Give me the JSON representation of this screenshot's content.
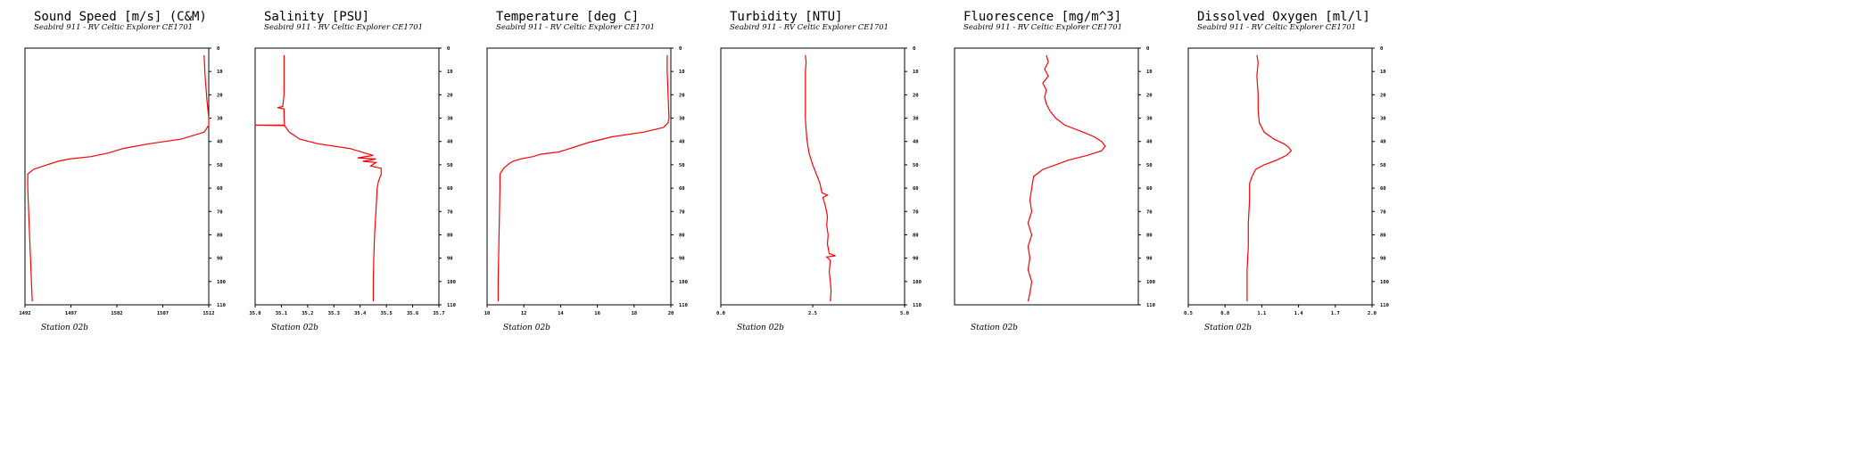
{
  "chart_data": [
    {
      "type": "line",
      "title": "Sound Speed [m/s] (C&M)",
      "subtitle": "Seabird 911 - RV Celtic Explorer CE1701",
      "station": "Station 02b",
      "color": "#ff0000",
      "xlim": [
        1492,
        1512
      ],
      "x_tick_labels": [
        "1492",
        "1497",
        "1502",
        "1507",
        "1512"
      ],
      "ylim": [
        0,
        110
      ],
      "y_inverted": true,
      "y_tick_labels": [
        "0",
        "10",
        "20",
        "30",
        "40",
        "50",
        "60",
        "70",
        "80",
        "90",
        "100",
        "110"
      ],
      "points": [
        [
          1511.5,
          3
        ],
        [
          1511.6,
          12
        ],
        [
          1511.8,
          22
        ],
        [
          1512.0,
          30
        ],
        [
          1512.0,
          33
        ],
        [
          1511.5,
          36
        ],
        [
          1509.0,
          39
        ],
        [
          1505.5,
          41
        ],
        [
          1502.7,
          43
        ],
        [
          1501.0,
          45
        ],
        [
          1499.2,
          46.5
        ],
        [
          1496.8,
          47.5
        ],
        [
          1495.6,
          48.5
        ],
        [
          1494.4,
          50
        ],
        [
          1492.9,
          52
        ],
        [
          1492.3,
          54
        ],
        [
          1492.3,
          60
        ],
        [
          1492.4,
          70
        ],
        [
          1492.5,
          80
        ],
        [
          1492.6,
          90
        ],
        [
          1492.7,
          100
        ],
        [
          1492.8,
          108.5
        ]
      ]
    },
    {
      "type": "line",
      "title": "Salinity [PSU]",
      "subtitle": "Seabird 911 - RV Celtic Explorer CE1701",
      "station": "Station 02b",
      "color": "#ff0000",
      "xlim": [
        35,
        35.7
      ],
      "x_tick_labels": [
        "35.0",
        "35.1",
        "35.2",
        "35.3",
        "35.4",
        "35.5",
        "35.6",
        "35.7"
      ],
      "ylim": [
        0,
        110
      ],
      "y_inverted": true,
      "y_tick_labels": [
        "0",
        "10",
        "20",
        "30",
        "40",
        "50",
        "60",
        "70",
        "80",
        "90",
        "100",
        "110"
      ],
      "points": [
        [
          35.11,
          3
        ],
        [
          35.11,
          10
        ],
        [
          35.11,
          20
        ],
        [
          35.105,
          25
        ],
        [
          35.085,
          25.5
        ],
        [
          35.11,
          26
        ],
        [
          35.11,
          30
        ],
        [
          35.112,
          33
        ],
        [
          35.0,
          33
        ],
        [
          35.112,
          33.2
        ],
        [
          35.13,
          36
        ],
        [
          35.17,
          39
        ],
        [
          35.24,
          41
        ],
        [
          35.36,
          43
        ],
        [
          35.42,
          45
        ],
        [
          35.45,
          46
        ],
        [
          35.39,
          47
        ],
        [
          35.46,
          47.5
        ],
        [
          35.41,
          48.5
        ],
        [
          35.46,
          49
        ],
        [
          35.44,
          50.5
        ],
        [
          35.48,
          51.5
        ],
        [
          35.48,
          54
        ],
        [
          35.47,
          57
        ],
        [
          35.465,
          60
        ],
        [
          35.46,
          70
        ],
        [
          35.455,
          80
        ],
        [
          35.452,
          90
        ],
        [
          35.45,
          100
        ],
        [
          35.45,
          108.5
        ]
      ]
    },
    {
      "type": "line",
      "title": "Temperature [deg C]",
      "subtitle": "Seabird 911 - RV Celtic Explorer CE1701",
      "station": "Station 02b",
      "color": "#ff0000",
      "xlim": [
        10,
        20
      ],
      "x_tick_labels": [
        "10",
        "12",
        "14",
        "16",
        "18",
        "20"
      ],
      "ylim": [
        0,
        110
      ],
      "y_inverted": true,
      "y_tick_labels": [
        "0",
        "10",
        "20",
        "30",
        "40",
        "50",
        "60",
        "70",
        "80",
        "90",
        "100",
        "110"
      ],
      "points": [
        [
          19.8,
          3
        ],
        [
          19.8,
          10
        ],
        [
          19.85,
          20
        ],
        [
          19.9,
          30
        ],
        [
          19.85,
          32
        ],
        [
          19.6,
          34
        ],
        [
          18.5,
          36
        ],
        [
          16.8,
          38
        ],
        [
          15.5,
          40.5
        ],
        [
          14.9,
          42
        ],
        [
          14.3,
          43.5
        ],
        [
          13.9,
          44.5
        ],
        [
          12.9,
          45.5
        ],
        [
          12.5,
          46.5
        ],
        [
          11.8,
          47.5
        ],
        [
          11.4,
          48.5
        ],
        [
          11.2,
          49.5
        ],
        [
          10.9,
          51.5
        ],
        [
          10.7,
          54
        ],
        [
          10.7,
          60
        ],
        [
          10.65,
          80
        ],
        [
          10.6,
          100
        ],
        [
          10.6,
          108.5
        ]
      ]
    },
    {
      "type": "line",
      "title": "Turbidity [NTU]",
      "subtitle": "Seabird 911 - RV Celtic Explorer CE1701",
      "station": "Station 02b",
      "color": "#ff0000",
      "xlim": [
        0,
        5
      ],
      "x_tick_labels": [
        "0.0",
        "2.5",
        "5.0"
      ],
      "ylim": [
        0,
        110
      ],
      "y_inverted": true,
      "y_tick_labels": [
        "0",
        "10",
        "20",
        "30",
        "40",
        "50",
        "60",
        "70",
        "80",
        "90",
        "100",
        "110"
      ],
      "points": [
        [
          2.3,
          3
        ],
        [
          2.32,
          6
        ],
        [
          2.3,
          10
        ],
        [
          2.3,
          20
        ],
        [
          2.3,
          30
        ],
        [
          2.32,
          35
        ],
        [
          2.35,
          40
        ],
        [
          2.4,
          45
        ],
        [
          2.5,
          50
        ],
        [
          2.6,
          54
        ],
        [
          2.7,
          58
        ],
        [
          2.75,
          62
        ],
        [
          2.9,
          63
        ],
        [
          2.78,
          64
        ],
        [
          2.85,
          68
        ],
        [
          2.9,
          72
        ],
        [
          2.88,
          76
        ],
        [
          2.92,
          80
        ],
        [
          2.9,
          84
        ],
        [
          2.95,
          88
        ],
        [
          3.12,
          89
        ],
        [
          2.88,
          89.5
        ],
        [
          2.98,
          91
        ],
        [
          2.95,
          96
        ],
        [
          2.98,
          100
        ],
        [
          3.0,
          104
        ],
        [
          2.98,
          108.5
        ]
      ]
    },
    {
      "type": "line",
      "title": "Fluorescence [mg/m^3]",
      "subtitle": "Seabird 911 - RV Celtic Explorer CE1701",
      "station": "Station 02b",
      "color": "#ff0000",
      "xlim": [
        0,
        1
      ],
      "x_tick_labels": [],
      "ylim": [
        0,
        110
      ],
      "y_inverted": true,
      "y_tick_labels": [
        "0",
        "10",
        "20",
        "30",
        "40",
        "50",
        "60",
        "70",
        "80",
        "90",
        "100",
        "110"
      ],
      "points": [
        [
          0.5,
          3
        ],
        [
          0.51,
          6
        ],
        [
          0.49,
          9
        ],
        [
          0.51,
          12
        ],
        [
          0.48,
          15
        ],
        [
          0.5,
          18
        ],
        [
          0.49,
          21
        ],
        [
          0.5,
          24
        ],
        [
          0.52,
          27
        ],
        [
          0.55,
          30
        ],
        [
          0.6,
          33
        ],
        [
          0.7,
          36
        ],
        [
          0.76,
          38
        ],
        [
          0.8,
          40
        ],
        [
          0.82,
          42
        ],
        [
          0.8,
          44
        ],
        [
          0.72,
          46
        ],
        [
          0.62,
          48
        ],
        [
          0.55,
          50
        ],
        [
          0.48,
          52
        ],
        [
          0.43,
          55
        ],
        [
          0.42,
          60
        ],
        [
          0.41,
          65
        ],
        [
          0.42,
          70
        ],
        [
          0.4,
          75
        ],
        [
          0.42,
          80
        ],
        [
          0.4,
          85
        ],
        [
          0.41,
          90
        ],
        [
          0.4,
          95
        ],
        [
          0.42,
          100
        ],
        [
          0.41,
          105
        ],
        [
          0.4,
          108.5
        ]
      ]
    },
    {
      "type": "line",
      "title": "Dissolved Oxygen [ml/l]",
      "subtitle": "Seabird 911 - RV Celtic Explorer CE1701",
      "station": "Station 02b",
      "color": "#ff0000",
      "xlim": [
        0.5,
        2.0
      ],
      "x_tick_labels": [
        "0.5",
        "0.8",
        "1.1",
        "1.4",
        "1.7",
        "2.0"
      ],
      "ylim": [
        0,
        110
      ],
      "y_inverted": true,
      "y_tick_labels": [
        "0",
        "10",
        "20",
        "30",
        "40",
        "50",
        "60",
        "70",
        "80",
        "90",
        "100",
        "110"
      ],
      "points": [
        [
          1.06,
          3
        ],
        [
          1.07,
          6
        ],
        [
          1.06,
          12
        ],
        [
          1.07,
          20
        ],
        [
          1.07,
          27
        ],
        [
          1.08,
          32
        ],
        [
          1.12,
          36
        ],
        [
          1.2,
          39
        ],
        [
          1.28,
          41
        ],
        [
          1.32,
          42.5
        ],
        [
          1.34,
          44
        ],
        [
          1.3,
          46
        ],
        [
          1.22,
          48
        ],
        [
          1.12,
          50
        ],
        [
          1.05,
          52
        ],
        [
          1.02,
          55
        ],
        [
          1.0,
          58
        ],
        [
          1.0,
          65
        ],
        [
          0.99,
          75
        ],
        [
          0.99,
          85
        ],
        [
          0.98,
          95
        ],
        [
          0.98,
          100
        ],
        [
          0.98,
          108.5
        ]
      ]
    }
  ]
}
